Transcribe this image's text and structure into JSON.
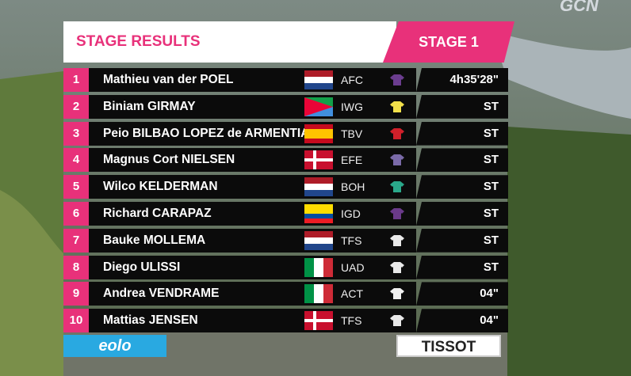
{
  "header": {
    "title": "STAGE RESULTS",
    "stage": "STAGE 1"
  },
  "results": [
    {
      "rank": 1,
      "name": "Mathieu van der POEL",
      "team": "AFC",
      "time": "4h35'28\""
    },
    {
      "rank": 2,
      "name": "Biniam GIRMAY",
      "team": "IWG",
      "time": "ST"
    },
    {
      "rank": 3,
      "name": "Peio BILBAO LOPEZ de ARMENTIA",
      "team": "TBV",
      "time": "ST"
    },
    {
      "rank": 4,
      "name": "Magnus Cort NIELSEN",
      "team": "EFE",
      "time": "ST"
    },
    {
      "rank": 5,
      "name": "Wilco KELDERMAN",
      "team": "BOH",
      "time": "ST"
    },
    {
      "rank": 6,
      "name": "Richard CARAPAZ",
      "team": "IGD",
      "time": "ST"
    },
    {
      "rank": 7,
      "name": "Bauke MOLLEMA",
      "team": "TFS",
      "time": "ST"
    },
    {
      "rank": 8,
      "name": "Diego ULISSI",
      "team": "UAD",
      "time": "ST"
    },
    {
      "rank": 9,
      "name": "Andrea VENDRAME",
      "team": "ACT",
      "time": "04\""
    },
    {
      "rank": 10,
      "name": "Mattias JENSEN",
      "team": "TFS",
      "time": "04\""
    }
  ],
  "logos": {
    "broadcaster": "GCN",
    "sponsor_left": "eolo",
    "sponsor_right": "TISSOT"
  }
}
